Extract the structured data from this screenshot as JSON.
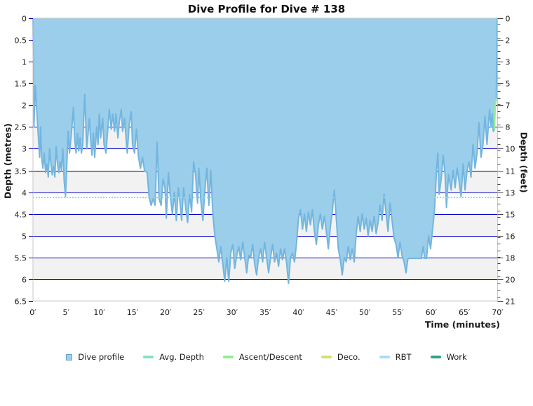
{
  "window": {
    "title": "Dive Profile for Dive # 138"
  },
  "chart_data": {
    "type": "area",
    "title": "Dive Profile for Dive # 138",
    "xlabel": "Time (minutes)",
    "ylabel_left": "Depth (metres)",
    "ylabel_right": "Depth (feet)",
    "xlim": [
      0,
      70
    ],
    "ylim_metres": [
      0,
      6.5
    ],
    "ylim_feet": [
      0,
      21
    ],
    "grid": "horizontal",
    "legend_position": "bottom",
    "x_tick_values": [
      0,
      5,
      10,
      15,
      20,
      25,
      30,
      35,
      40,
      45,
      50,
      55,
      60,
      65,
      70
    ],
    "x_tick_labels": [
      "0′",
      "5′",
      "10′",
      "15′",
      "20′",
      "25′",
      "30′",
      "35′",
      "40′",
      "45′",
      "50′",
      "55′",
      "60′",
      "65′",
      "70′"
    ],
    "y_tick_values_metres": [
      0,
      0.5,
      1,
      1.5,
      2,
      2.5,
      3,
      3.5,
      4,
      4.5,
      5,
      5.5,
      6,
      6.5
    ],
    "y_tick_labels_metres": [
      "0",
      "0.5",
      "1",
      "1.5",
      "2",
      "2.5",
      "3",
      "3.5",
      "4",
      "4.5",
      "5",
      "5.5",
      "6",
      "6.5"
    ],
    "y_tick_labels_feet": [
      "0",
      "2",
      "3",
      "5",
      "7",
      "8",
      "10",
      "11",
      "13",
      "15",
      "16",
      "18",
      "20",
      "21"
    ],
    "avg_depth_m": 4.12,
    "max_depth_m": 6.1,
    "ascent_window_min": [
      69.45,
      69.85
    ],
    "series": [
      {
        "name": "Dive profile",
        "points": [
          [
            0,
            0
          ],
          [
            0.15,
            2.5
          ],
          [
            0.35,
            1.55
          ],
          [
            0.6,
            2.2
          ],
          [
            0.8,
            2.7
          ],
          [
            1,
            3.2
          ],
          [
            1.15,
            2.5
          ],
          [
            1.3,
            3.2
          ],
          [
            1.5,
            3.45
          ],
          [
            1.7,
            3.1
          ],
          [
            1.9,
            3.55
          ],
          [
            2.1,
            3.35
          ],
          [
            2.3,
            3.65
          ],
          [
            2.5,
            3
          ],
          [
            2.7,
            3.35
          ],
          [
            2.9,
            3.6
          ],
          [
            3.1,
            3.4
          ],
          [
            3.3,
            3.65
          ],
          [
            3.5,
            2.95
          ],
          [
            3.7,
            3.35
          ],
          [
            3.9,
            3.55
          ],
          [
            4.1,
            3.3
          ],
          [
            4.3,
            3.5
          ],
          [
            4.5,
            3
          ],
          [
            4.7,
            3.75
          ],
          [
            4.9,
            4.1
          ],
          [
            5.1,
            3.35
          ],
          [
            5.3,
            2.6
          ],
          [
            5.5,
            3.1
          ],
          [
            5.7,
            2.8
          ],
          [
            5.9,
            2.45
          ],
          [
            6.1,
            2.05
          ],
          [
            6.3,
            2.8
          ],
          [
            6.5,
            3.1
          ],
          [
            6.7,
            2.65
          ],
          [
            6.9,
            3.05
          ],
          [
            7.1,
            2.75
          ],
          [
            7.3,
            3.1
          ],
          [
            7.5,
            2.9
          ],
          [
            7.8,
            1.75
          ],
          [
            8.1,
            3
          ],
          [
            8.3,
            2.65
          ],
          [
            8.5,
            2.3
          ],
          [
            8.7,
            2.8
          ],
          [
            8.9,
            3.15
          ],
          [
            9.1,
            2.65
          ],
          [
            9.3,
            3.2
          ],
          [
            9.6,
            2.5
          ],
          [
            9.8,
            2.9
          ],
          [
            10,
            2.2
          ],
          [
            10.2,
            2.75
          ],
          [
            10.5,
            2.3
          ],
          [
            10.7,
            2.9
          ],
          [
            11,
            3.1
          ],
          [
            11.3,
            2.5
          ],
          [
            11.5,
            2.1
          ],
          [
            11.8,
            2.55
          ],
          [
            12,
            2.2
          ],
          [
            12.3,
            2.6
          ],
          [
            12.5,
            2.2
          ],
          [
            12.8,
            2.75
          ],
          [
            13,
            2.4
          ],
          [
            13.3,
            2.1
          ],
          [
            13.5,
            2.6
          ],
          [
            13.8,
            2.3
          ],
          [
            14,
            2.7
          ],
          [
            14.2,
            3.1
          ],
          [
            14.5,
            2.45
          ],
          [
            14.8,
            2.15
          ],
          [
            15,
            2.9
          ],
          [
            15.3,
            3.1
          ],
          [
            15.6,
            2.55
          ],
          [
            15.9,
            3.2
          ],
          [
            16.2,
            3.45
          ],
          [
            16.5,
            3.2
          ],
          [
            16.8,
            3.5
          ],
          [
            17.2,
            3.55
          ],
          [
            17.5,
            4.1
          ],
          [
            17.8,
            4.3
          ],
          [
            18.1,
            4.15
          ],
          [
            18.4,
            4.3
          ],
          [
            18.7,
            2.85
          ],
          [
            19,
            4.15
          ],
          [
            19.3,
            4.3
          ],
          [
            19.6,
            3.7
          ],
          [
            19.9,
            3.9
          ],
          [
            20.1,
            4.6
          ],
          [
            20.4,
            3.55
          ],
          [
            20.7,
            4.1
          ],
          [
            21,
            4.5
          ],
          [
            21.3,
            4
          ],
          [
            21.6,
            4.65
          ],
          [
            21.9,
            3.9
          ],
          [
            22.2,
            4.3
          ],
          [
            22.4,
            4.65
          ],
          [
            22.7,
            3.9
          ],
          [
            23,
            4.35
          ],
          [
            23.3,
            4.7
          ],
          [
            23.6,
            4.05
          ],
          [
            23.9,
            4.45
          ],
          [
            24.2,
            3.3
          ],
          [
            24.5,
            3.6
          ],
          [
            24.8,
            4.25
          ],
          [
            25,
            3.45
          ],
          [
            25.3,
            4.2
          ],
          [
            25.6,
            4.65
          ],
          [
            25.9,
            3.95
          ],
          [
            26.2,
            3.45
          ],
          [
            26.5,
            4.3
          ],
          [
            26.8,
            3.5
          ],
          [
            27.1,
            4.5
          ],
          [
            27.4,
            5
          ],
          [
            27.7,
            5.3
          ],
          [
            28,
            5.6
          ],
          [
            28.3,
            5.25
          ],
          [
            28.6,
            5.65
          ],
          [
            28.9,
            6.05
          ],
          [
            29.2,
            5.5
          ],
          [
            29.5,
            6.05
          ],
          [
            29.8,
            5.4
          ],
          [
            30.1,
            5.2
          ],
          [
            30.4,
            5.75
          ],
          [
            30.7,
            5.45
          ],
          [
            31,
            5.25
          ],
          [
            31.3,
            5.55
          ],
          [
            31.6,
            5.15
          ],
          [
            31.9,
            5.5
          ],
          [
            32.2,
            5.85
          ],
          [
            32.5,
            5.45
          ],
          [
            32.8,
            5.5
          ],
          [
            33.1,
            5.2
          ],
          [
            33.4,
            5.65
          ],
          [
            33.7,
            5.9
          ],
          [
            34,
            5.5
          ],
          [
            34.3,
            5.3
          ],
          [
            34.6,
            5.6
          ],
          [
            34.9,
            5.15
          ],
          [
            35.2,
            5.5
          ],
          [
            35.5,
            5.85
          ],
          [
            35.8,
            5.5
          ],
          [
            36.1,
            5.2
          ],
          [
            36.4,
            5.6
          ],
          [
            36.7,
            5.4
          ],
          [
            37,
            5.7
          ],
          [
            37.3,
            5.3
          ],
          [
            37.6,
            5.55
          ],
          [
            37.9,
            5.3
          ],
          [
            38.2,
            5.6
          ],
          [
            38.5,
            6.1
          ],
          [
            38.8,
            5.5
          ],
          [
            39.1,
            5.4
          ],
          [
            39.4,
            5.6
          ],
          [
            39.7,
            5.2
          ],
          [
            40,
            4.6
          ],
          [
            40.3,
            4.4
          ],
          [
            40.6,
            4.85
          ],
          [
            40.9,
            4.5
          ],
          [
            41.2,
            4.9
          ],
          [
            41.5,
            4.45
          ],
          [
            41.8,
            4.75
          ],
          [
            42.1,
            4.4
          ],
          [
            42.4,
            4.9
          ],
          [
            42.7,
            5.2
          ],
          [
            43,
            4.75
          ],
          [
            43.3,
            4.5
          ],
          [
            43.6,
            4.85
          ],
          [
            43.9,
            4.55
          ],
          [
            44.2,
            4.9
          ],
          [
            44.5,
            5.3
          ],
          [
            44.8,
            4.8
          ],
          [
            45.1,
            4.45
          ],
          [
            45.4,
            3.95
          ],
          [
            45.7,
            4.6
          ],
          [
            46,
            5.3
          ],
          [
            46.3,
            5.55
          ],
          [
            46.6,
            5.9
          ],
          [
            46.9,
            5.5
          ],
          [
            47.2,
            5.6
          ],
          [
            47.5,
            5.25
          ],
          [
            47.8,
            5.55
          ],
          [
            48.1,
            5.3
          ],
          [
            48.4,
            5.6
          ],
          [
            48.7,
            4.95
          ],
          [
            49,
            4.55
          ],
          [
            49.3,
            4.9
          ],
          [
            49.6,
            4.5
          ],
          [
            49.9,
            4.85
          ],
          [
            50.2,
            4.6
          ],
          [
            50.5,
            5
          ],
          [
            50.8,
            4.65
          ],
          [
            51.1,
            4.9
          ],
          [
            51.4,
            4.55
          ],
          [
            51.7,
            4.95
          ],
          [
            52,
            4.7
          ],
          [
            52.3,
            4.3
          ],
          [
            52.6,
            4.65
          ],
          [
            52.9,
            4.05
          ],
          [
            53.2,
            4.5
          ],
          [
            53.5,
            4.9
          ],
          [
            53.8,
            4.25
          ],
          [
            54.1,
            4.65
          ],
          [
            54.4,
            5.05
          ],
          [
            54.7,
            5.2
          ],
          [
            55,
            5.5
          ],
          [
            55.3,
            5.15
          ],
          [
            55.6,
            5.45
          ],
          [
            55.9,
            5.6
          ],
          [
            56.2,
            5.85
          ],
          [
            56.5,
            5.52
          ],
          [
            57,
            5.52
          ],
          [
            57.5,
            5.52
          ],
          [
            58,
            5.52
          ],
          [
            58.5,
            5.52
          ],
          [
            58.8,
            5.25
          ],
          [
            59,
            5.52
          ],
          [
            59.3,
            5.52
          ],
          [
            59.6,
            5
          ],
          [
            59.9,
            5.3
          ],
          [
            60.2,
            4.85
          ],
          [
            60.5,
            4.4
          ],
          [
            60.8,
            3.5
          ],
          [
            61,
            3.1
          ],
          [
            61.2,
            4.05
          ],
          [
            61.5,
            3.7
          ],
          [
            61.8,
            3.15
          ],
          [
            62.1,
            3.6
          ],
          [
            62.3,
            4.35
          ],
          [
            62.6,
            3.6
          ],
          [
            63,
            3.95
          ],
          [
            63.3,
            3.5
          ],
          [
            63.6,
            3.9
          ],
          [
            63.9,
            3.45
          ],
          [
            64.2,
            3.75
          ],
          [
            64.5,
            4.1
          ],
          [
            64.8,
            3.35
          ],
          [
            65.1,
            3.95
          ],
          [
            65.4,
            3.5
          ],
          [
            65.7,
            3.3
          ],
          [
            66,
            3.65
          ],
          [
            66.3,
            2.9
          ],
          [
            66.6,
            3.45
          ],
          [
            66.9,
            3.1
          ],
          [
            67.2,
            2.4
          ],
          [
            67.5,
            3.2
          ],
          [
            67.8,
            2.9
          ],
          [
            68.1,
            2.25
          ],
          [
            68.4,
            2.9
          ],
          [
            68.6,
            2.5
          ],
          [
            68.8,
            2.1
          ],
          [
            69,
            2.5
          ],
          [
            69.2,
            2.2
          ],
          [
            69.35,
            2.6
          ],
          [
            69.5,
            2.55
          ],
          [
            69.65,
            1.95
          ],
          [
            69.8,
            1.85
          ],
          [
            69.95,
            0
          ],
          [
            70,
            0
          ]
        ]
      }
    ],
    "legend": [
      {
        "label": "Dive profile",
        "shape": "square",
        "color": "#A3CEE9",
        "border": "#5F9FCB"
      },
      {
        "label": "Avg. Depth",
        "shape": "dash",
        "color": "#7FE3C3"
      },
      {
        "label": "Ascent/Descent",
        "shape": "dash",
        "color": "#90EE90"
      },
      {
        "label": "Deco.",
        "shape": "dash",
        "color": "#D8DF6F"
      },
      {
        "label": "RBT",
        "shape": "dash",
        "color": "#A9DCF5"
      },
      {
        "label": "Work",
        "shape": "dash",
        "color": "#2FA38B"
      }
    ],
    "colors": {
      "profile_fill": "#9ACEEA",
      "profile_line": "#73B5DF",
      "ascent_line": "#90EE90",
      "avg_depth_line": "#85E3C4",
      "gridline": "#0000CC",
      "band_gray": "#F2F2F2",
      "band_white": "#FFFFFF",
      "plot_border": "#C9C9C9",
      "tick_text": "#1A1A1A"
    }
  }
}
